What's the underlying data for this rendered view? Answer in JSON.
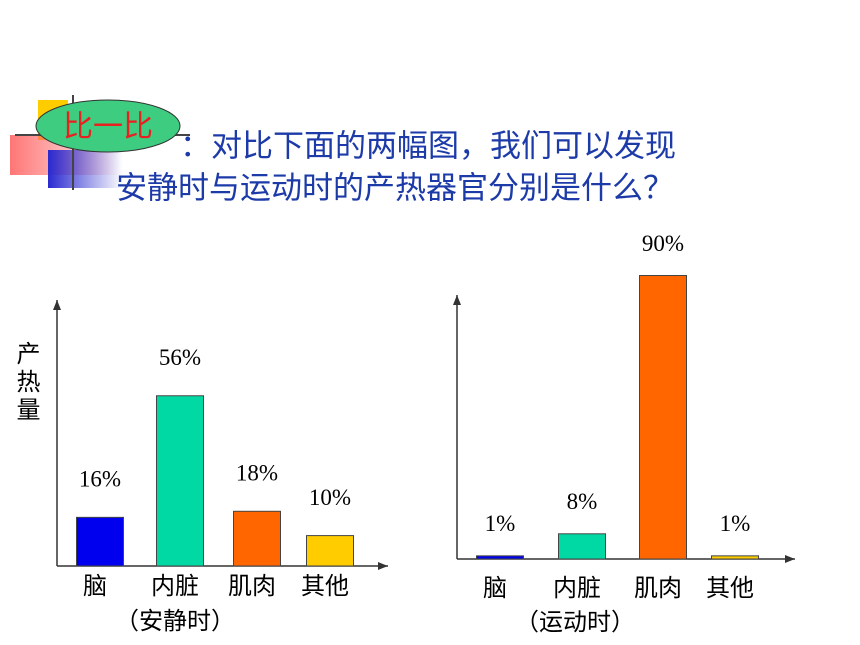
{
  "header": {
    "badge": "比一比",
    "line1": "：对比下面的两幅图，我们可以发现",
    "line2": "安静时与运动时的产热器官分别是什么？"
  },
  "chart_data": [
    {
      "type": "bar",
      "y_label": "产热量",
      "x_label": "（安静时）",
      "categories": [
        "脑",
        "内脏",
        "肌肉",
        "其他"
      ],
      "values": [
        16,
        56,
        18,
        10
      ],
      "value_labels": [
        "16%",
        "56%",
        "18%",
        "10%"
      ],
      "colors": [
        "#0000ee",
        "#00d9a3",
        "#ff6600",
        "#ffcc00"
      ],
      "ylim": [
        0,
        100
      ]
    },
    {
      "type": "bar",
      "x_label": "（运动时）",
      "categories": [
        "脑",
        "内脏",
        "肌肉",
        "其他"
      ],
      "values": [
        1,
        8,
        90,
        1
      ],
      "value_labels": [
        "1%",
        "8%",
        "90%",
        "1%"
      ],
      "colors": [
        "#0000ee",
        "#00d9a3",
        "#ff6600",
        "#ffcc00"
      ],
      "ylim": [
        0,
        100
      ]
    }
  ]
}
